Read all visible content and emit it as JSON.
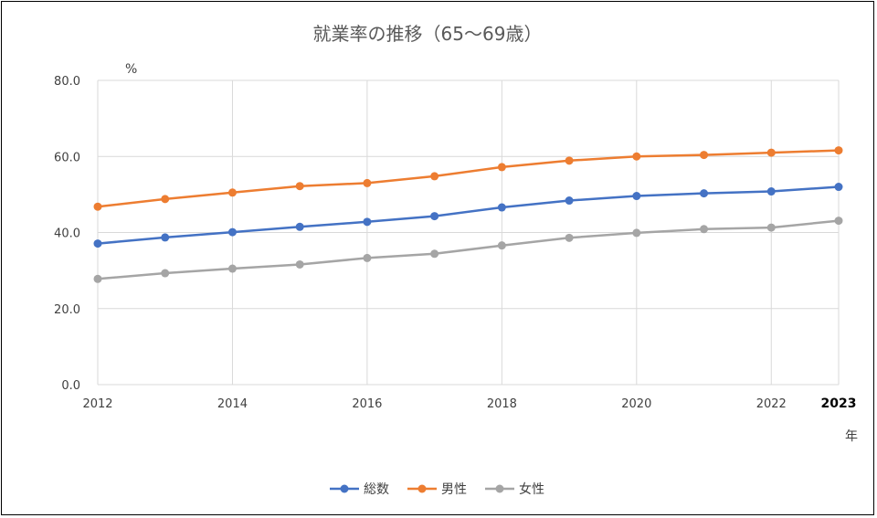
{
  "chart_data": {
    "type": "line",
    "title": "就業率の推移（65～69歳）",
    "ylabel": "%",
    "xlabel": "年",
    "x": [
      2012,
      2013,
      2014,
      2015,
      2016,
      2017,
      2018,
      2019,
      2020,
      2021,
      2022,
      2023
    ],
    "x_tick_labels": [
      "2012",
      "2014",
      "2016",
      "2018",
      "2020",
      "2022",
      "2023"
    ],
    "y_tick_labels": [
      "0.0",
      "20.0",
      "40.0",
      "60.0",
      "80.0"
    ],
    "ylim": [
      0,
      80
    ],
    "xlim": [
      2012,
      2023
    ],
    "grid": true,
    "legend_position": "bottom",
    "series": [
      {
        "name": "総数",
        "color": "#4472c4",
        "values": [
          37.1,
          38.7,
          40.1,
          41.5,
          42.8,
          44.3,
          46.6,
          48.4,
          49.6,
          50.3,
          50.8,
          52.0
        ]
      },
      {
        "name": "男性",
        "color": "#ed7d31",
        "values": [
          46.8,
          48.8,
          50.5,
          52.2,
          53.0,
          54.8,
          57.2,
          58.9,
          60.0,
          60.4,
          61.0,
          61.6
        ]
      },
      {
        "name": "女性",
        "color": "#a5a5a5",
        "values": [
          27.8,
          29.3,
          30.5,
          31.6,
          33.3,
          34.4,
          36.6,
          38.6,
          39.9,
          40.9,
          41.3,
          43.1
        ]
      }
    ]
  }
}
